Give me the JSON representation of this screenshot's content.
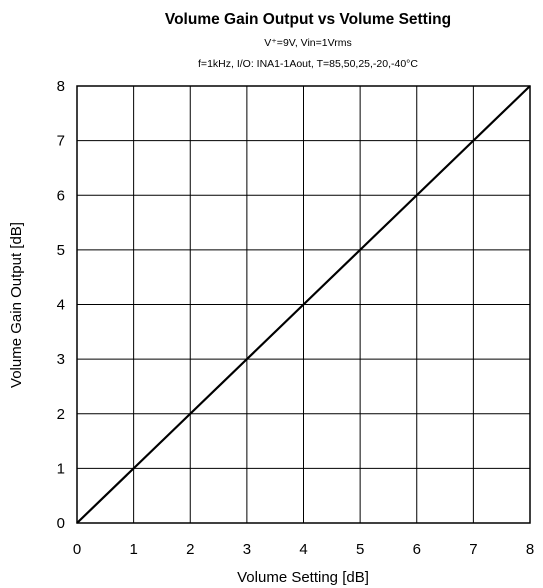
{
  "chart_data": {
    "type": "line",
    "title": "Volume Gain Output  vs Volume Setting",
    "subtitle_lines": [
      "V⁺=9V, Vin=1Vrms",
      "f=1kHz,  I/O: INA1-1Aout, T=85,50,25,-20,-40°C"
    ],
    "xlabel": "Volume Setting [dB]",
    "ylabel": "Volume Gain Output [dB]",
    "xlim": [
      0,
      8
    ],
    "ylim": [
      0,
      8
    ],
    "xticks": [
      "0",
      "1",
      "2",
      "3",
      "4",
      "5",
      "6",
      "7",
      "8"
    ],
    "yticks": [
      "0",
      "1",
      "2",
      "3",
      "4",
      "5",
      "6",
      "7",
      "8"
    ],
    "grid": true,
    "series": [
      {
        "x": [
          0,
          1,
          2,
          3,
          4,
          5,
          6,
          7,
          8
        ],
        "y": [
          0,
          1,
          2,
          3,
          4,
          5,
          6,
          7,
          8
        ]
      }
    ],
    "colors": {
      "line": "#000000",
      "grid": "#000000",
      "background": "#ffffff"
    }
  }
}
